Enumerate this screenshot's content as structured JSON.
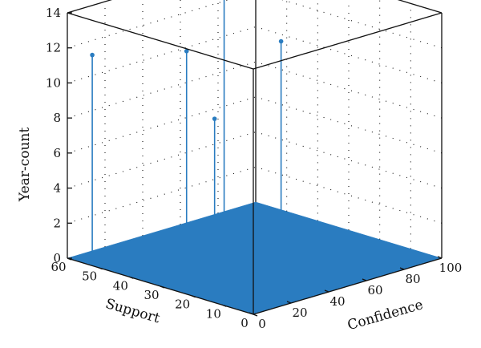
{
  "chart_data": {
    "type": "stem3d",
    "xlabel": "Confidence",
    "ylabel": "Support",
    "zlabel": "Year-count",
    "xlim": [
      0,
      100
    ],
    "ylim": [
      0,
      60
    ],
    "zlim": [
      0,
      14
    ],
    "xticks": [
      "0",
      "20",
      "40",
      "60",
      "80",
      "100"
    ],
    "yticks": [
      "0",
      "10",
      "20",
      "30",
      "40",
      "50",
      "60"
    ],
    "zticks": [
      "0",
      "2",
      "4",
      "6",
      "8",
      "10",
      "12",
      "14"
    ],
    "grid": true,
    "colors": {
      "series": "#2a7cc0",
      "floor": "#2a7cc0"
    },
    "points": [
      {
        "x": 5,
        "y": 55,
        "z": 11.7
      },
      {
        "x": 60,
        "y": 58,
        "z": 10.0
      },
      {
        "x": 65,
        "y": 52,
        "z": 6.3
      },
      {
        "x": 75,
        "y": 55,
        "z": 13.9
      },
      {
        "x": 97,
        "y": 50,
        "z": 9.8
      }
    ]
  }
}
